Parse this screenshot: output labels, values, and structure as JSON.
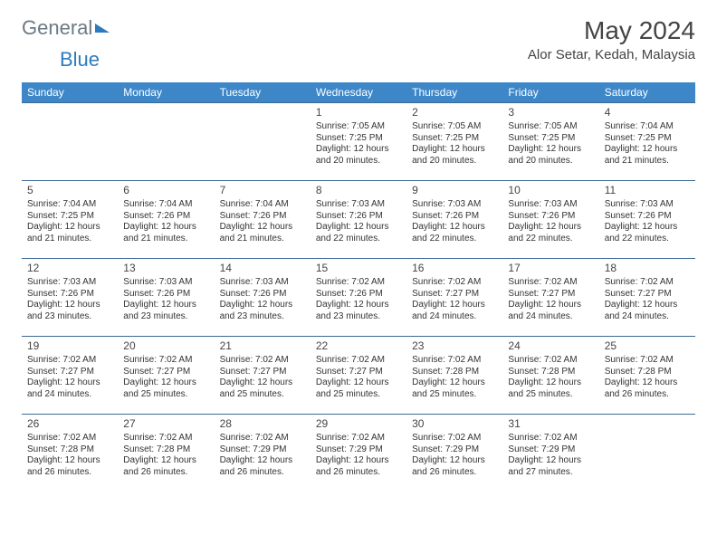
{
  "brand": {
    "part1": "General",
    "part2": "Blue"
  },
  "title": "May 2024",
  "location": "Alor Setar, Kedah, Malaysia",
  "colors": {
    "header_bg": "#3d87c9",
    "header_text": "#ffffff",
    "border": "#3d6a94",
    "logo_gray": "#6b7a85",
    "logo_blue": "#2d7bbf"
  },
  "day_headers": [
    "Sunday",
    "Monday",
    "Tuesday",
    "Wednesday",
    "Thursday",
    "Friday",
    "Saturday"
  ],
  "weeks": [
    [
      null,
      null,
      null,
      {
        "n": "1",
        "sr": "7:05 AM",
        "ss": "7:25 PM",
        "dl": "12 hours and 20 minutes."
      },
      {
        "n": "2",
        "sr": "7:05 AM",
        "ss": "7:25 PM",
        "dl": "12 hours and 20 minutes."
      },
      {
        "n": "3",
        "sr": "7:05 AM",
        "ss": "7:25 PM",
        "dl": "12 hours and 20 minutes."
      },
      {
        "n": "4",
        "sr": "7:04 AM",
        "ss": "7:25 PM",
        "dl": "12 hours and 21 minutes."
      }
    ],
    [
      {
        "n": "5",
        "sr": "7:04 AM",
        "ss": "7:25 PM",
        "dl": "12 hours and 21 minutes."
      },
      {
        "n": "6",
        "sr": "7:04 AM",
        "ss": "7:26 PM",
        "dl": "12 hours and 21 minutes."
      },
      {
        "n": "7",
        "sr": "7:04 AM",
        "ss": "7:26 PM",
        "dl": "12 hours and 21 minutes."
      },
      {
        "n": "8",
        "sr": "7:03 AM",
        "ss": "7:26 PM",
        "dl": "12 hours and 22 minutes."
      },
      {
        "n": "9",
        "sr": "7:03 AM",
        "ss": "7:26 PM",
        "dl": "12 hours and 22 minutes."
      },
      {
        "n": "10",
        "sr": "7:03 AM",
        "ss": "7:26 PM",
        "dl": "12 hours and 22 minutes."
      },
      {
        "n": "11",
        "sr": "7:03 AM",
        "ss": "7:26 PM",
        "dl": "12 hours and 22 minutes."
      }
    ],
    [
      {
        "n": "12",
        "sr": "7:03 AM",
        "ss": "7:26 PM",
        "dl": "12 hours and 23 minutes."
      },
      {
        "n": "13",
        "sr": "7:03 AM",
        "ss": "7:26 PM",
        "dl": "12 hours and 23 minutes."
      },
      {
        "n": "14",
        "sr": "7:03 AM",
        "ss": "7:26 PM",
        "dl": "12 hours and 23 minutes."
      },
      {
        "n": "15",
        "sr": "7:02 AM",
        "ss": "7:26 PM",
        "dl": "12 hours and 23 minutes."
      },
      {
        "n": "16",
        "sr": "7:02 AM",
        "ss": "7:27 PM",
        "dl": "12 hours and 24 minutes."
      },
      {
        "n": "17",
        "sr": "7:02 AM",
        "ss": "7:27 PM",
        "dl": "12 hours and 24 minutes."
      },
      {
        "n": "18",
        "sr": "7:02 AM",
        "ss": "7:27 PM",
        "dl": "12 hours and 24 minutes."
      }
    ],
    [
      {
        "n": "19",
        "sr": "7:02 AM",
        "ss": "7:27 PM",
        "dl": "12 hours and 24 minutes."
      },
      {
        "n": "20",
        "sr": "7:02 AM",
        "ss": "7:27 PM",
        "dl": "12 hours and 25 minutes."
      },
      {
        "n": "21",
        "sr": "7:02 AM",
        "ss": "7:27 PM",
        "dl": "12 hours and 25 minutes."
      },
      {
        "n": "22",
        "sr": "7:02 AM",
        "ss": "7:27 PM",
        "dl": "12 hours and 25 minutes."
      },
      {
        "n": "23",
        "sr": "7:02 AM",
        "ss": "7:28 PM",
        "dl": "12 hours and 25 minutes."
      },
      {
        "n": "24",
        "sr": "7:02 AM",
        "ss": "7:28 PM",
        "dl": "12 hours and 25 minutes."
      },
      {
        "n": "25",
        "sr": "7:02 AM",
        "ss": "7:28 PM",
        "dl": "12 hours and 26 minutes."
      }
    ],
    [
      {
        "n": "26",
        "sr": "7:02 AM",
        "ss": "7:28 PM",
        "dl": "12 hours and 26 minutes."
      },
      {
        "n": "27",
        "sr": "7:02 AM",
        "ss": "7:28 PM",
        "dl": "12 hours and 26 minutes."
      },
      {
        "n": "28",
        "sr": "7:02 AM",
        "ss": "7:29 PM",
        "dl": "12 hours and 26 minutes."
      },
      {
        "n": "29",
        "sr": "7:02 AM",
        "ss": "7:29 PM",
        "dl": "12 hours and 26 minutes."
      },
      {
        "n": "30",
        "sr": "7:02 AM",
        "ss": "7:29 PM",
        "dl": "12 hours and 26 minutes."
      },
      {
        "n": "31",
        "sr": "7:02 AM",
        "ss": "7:29 PM",
        "dl": "12 hours and 27 minutes."
      },
      null
    ]
  ],
  "labels": {
    "sunrise": "Sunrise: ",
    "sunset": "Sunset: ",
    "daylight": "Daylight: "
  }
}
